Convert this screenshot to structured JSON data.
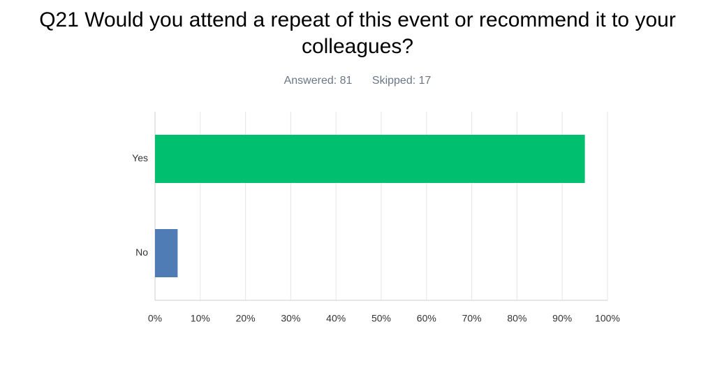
{
  "chart_data": {
    "type": "hbar",
    "title": "Q21 Would you attend a repeat of this event or recommend it to your colleagues?",
    "answered": "Answered: 81",
    "skipped": "Skipped: 17",
    "categories": [
      "Yes",
      "No"
    ],
    "values": [
      95,
      5
    ],
    "colors": [
      "#00bf6f",
      "#507cb6"
    ],
    "xlim": [
      0,
      100
    ],
    "xticks": [
      {
        "value": 0,
        "label": "0%"
      },
      {
        "value": 10,
        "label": "10%"
      },
      {
        "value": 20,
        "label": "20%"
      },
      {
        "value": 30,
        "label": "30%"
      },
      {
        "value": 40,
        "label": "40%"
      },
      {
        "value": 50,
        "label": "50%"
      },
      {
        "value": 60,
        "label": "60%"
      },
      {
        "value": 70,
        "label": "70%"
      },
      {
        "value": 80,
        "label": "80%"
      },
      {
        "value": 90,
        "label": "90%"
      },
      {
        "value": 100,
        "label": "100%"
      }
    ],
    "grid": true
  }
}
